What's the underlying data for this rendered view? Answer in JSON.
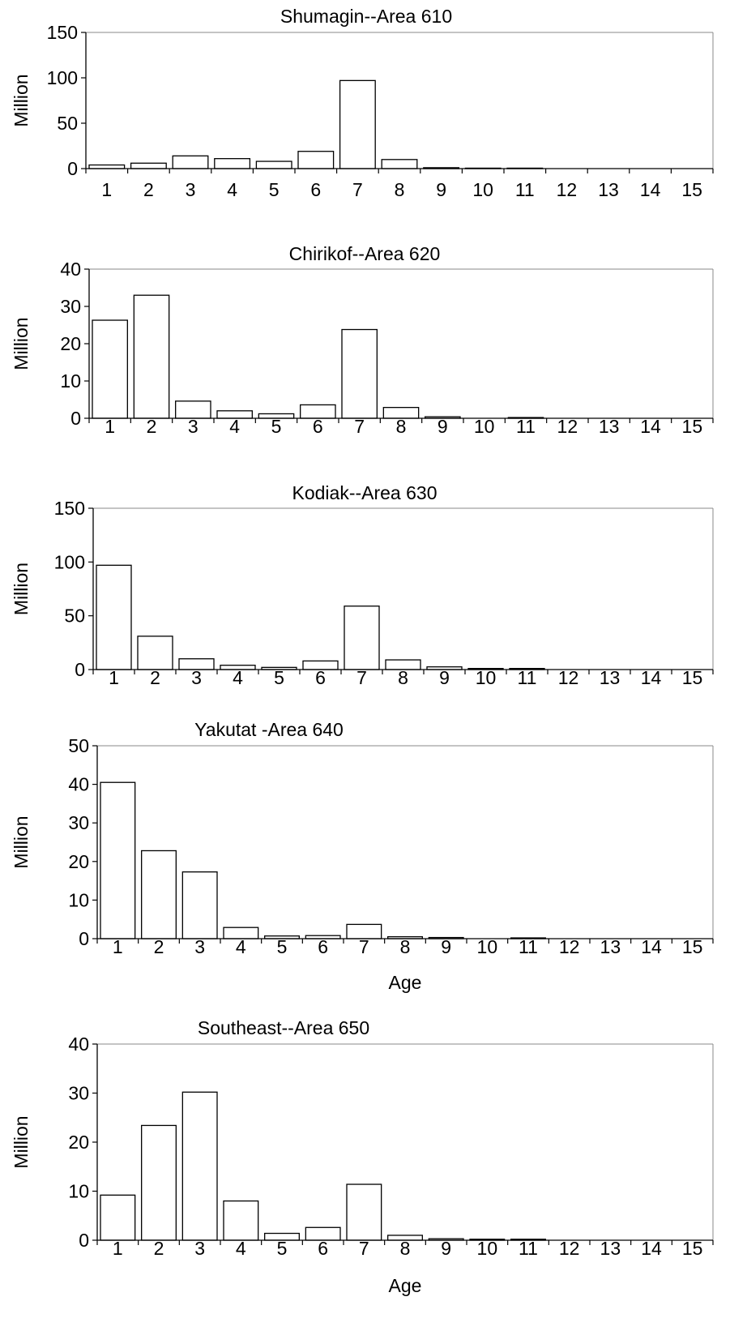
{
  "chart_data": [
    {
      "type": "bar",
      "title": "Shumagin--Area 610",
      "ylabel": "Million",
      "xlabel": "",
      "categories": [
        "1",
        "2",
        "3",
        "4",
        "5",
        "6",
        "7",
        "8",
        "9",
        "10",
        "11",
        "12",
        "13",
        "14",
        "15"
      ],
      "values": [
        4,
        6,
        14,
        11,
        8,
        19,
        97,
        10,
        1,
        0.5,
        0.5,
        0,
        0,
        0,
        0
      ],
      "ylim": [
        0,
        150
      ],
      "yticks": [
        0,
        50,
        100,
        150
      ],
      "bar_color": "#ffffff",
      "bar_edge_color": "#000000",
      "grid": false
    },
    {
      "type": "bar",
      "title": "Chirikof--Area 620",
      "ylabel": "Million",
      "xlabel": "",
      "categories": [
        "1",
        "2",
        "3",
        "4",
        "5",
        "6",
        "7",
        "8",
        "9",
        "10",
        "11",
        "12",
        "13",
        "14",
        "15"
      ],
      "values": [
        26.3,
        33,
        4.6,
        2,
        1.2,
        3.6,
        23.8,
        2.9,
        0.4,
        0,
        0.2,
        0,
        0,
        0,
        0
      ],
      "ylim": [
        0,
        40
      ],
      "yticks": [
        0,
        10,
        20,
        30,
        40
      ],
      "bar_color": "#ffffff",
      "bar_edge_color": "#000000",
      "grid": false
    },
    {
      "type": "bar",
      "title": "Kodiak--Area 630",
      "ylabel": "Million",
      "xlabel": "",
      "categories": [
        "1",
        "2",
        "3",
        "4",
        "5",
        "6",
        "7",
        "8",
        "9",
        "10",
        "11",
        "12",
        "13",
        "14",
        "15"
      ],
      "values": [
        97,
        31,
        10,
        4,
        2,
        8,
        59,
        9,
        2.5,
        1,
        1,
        0,
        0,
        0,
        0
      ],
      "ylim": [
        0,
        150
      ],
      "yticks": [
        0,
        50,
        100,
        150
      ],
      "bar_color": "#ffffff",
      "bar_edge_color": "#000000",
      "grid": false
    },
    {
      "type": "bar",
      "title": "Yakutat -Area 640",
      "ylabel": "Million",
      "xlabel": "Age",
      "categories": [
        "1",
        "2",
        "3",
        "4",
        "5",
        "6",
        "7",
        "8",
        "9",
        "10",
        "11",
        "12",
        "13",
        "14",
        "15"
      ],
      "values": [
        40.5,
        22.8,
        17.3,
        2.9,
        0.7,
        0.8,
        3.7,
        0.5,
        0.3,
        0,
        0.2,
        0,
        0,
        0,
        0
      ],
      "ylim": [
        0,
        50
      ],
      "yticks": [
        0,
        10,
        20,
        30,
        40,
        50
      ],
      "bar_color": "#ffffff",
      "bar_edge_color": "#000000",
      "grid": false
    },
    {
      "type": "bar",
      "title": "Southeast--Area 650",
      "ylabel": "Million",
      "xlabel": "Age",
      "categories": [
        "1",
        "2",
        "3",
        "4",
        "5",
        "6",
        "7",
        "8",
        "9",
        "10",
        "11",
        "12",
        "13",
        "14",
        "15"
      ],
      "values": [
        9.2,
        23.4,
        30.2,
        8,
        1.4,
        2.6,
        11.4,
        1,
        0.3,
        0.2,
        0.2,
        0,
        0,
        0,
        0
      ],
      "ylim": [
        0,
        40
      ],
      "yticks": [
        0,
        10,
        20,
        30,
        40
      ],
      "bar_color": "#ffffff",
      "bar_edge_color": "#000000",
      "grid": false
    }
  ]
}
